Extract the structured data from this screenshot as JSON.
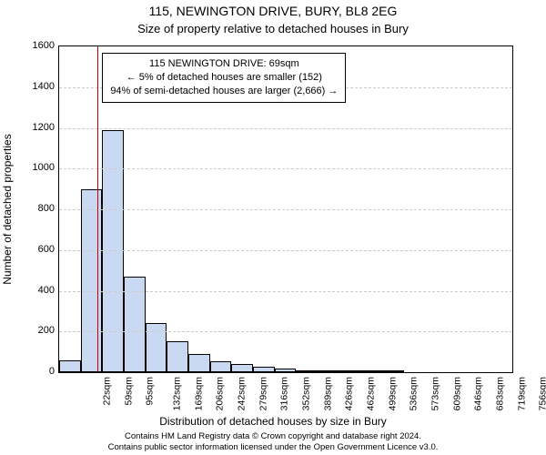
{
  "titles": {
    "main": "115, NEWINGTON DRIVE, BURY, BL8 2EG",
    "sub": "Size of property relative to detached houses in Bury"
  },
  "axes": {
    "ylabel": "Number of detached properties",
    "xlabel": "Distribution of detached houses by size in Bury",
    "ylim": [
      0,
      1600
    ],
    "yticks": [
      0,
      200,
      400,
      600,
      800,
      1000,
      1200,
      1400,
      1600
    ],
    "xlim_sqm": [
      3.4,
      775.4
    ],
    "bar_width_sqm": 36.7,
    "xtick_labels": [
      "22sqm",
      "59sqm",
      "95sqm",
      "132sqm",
      "169sqm",
      "206sqm",
      "242sqm",
      "279sqm",
      "316sqm",
      "352sqm",
      "389sqm",
      "426sqm",
      "462sqm",
      "499sqm",
      "536sqm",
      "573sqm",
      "609sqm",
      "646sqm",
      "683sqm",
      "719sqm",
      "756sqm"
    ]
  },
  "style": {
    "bar_fill": "#c9d9f2",
    "bar_border": "#000000",
    "grid_color": "#cccccc",
    "marker_color": "#cc0000",
    "background": "#ffffff",
    "font_family": "Arial",
    "title_fontsize": 14,
    "label_fontsize": 12,
    "tick_fontsize": 11,
    "footer_fontsize": 9.5
  },
  "series": {
    "values": [
      60,
      900,
      1190,
      470,
      240,
      150,
      90,
      55,
      40,
      25,
      20,
      10,
      8,
      6,
      4,
      3,
      2,
      1,
      0,
      0,
      0
    ]
  },
  "marker": {
    "sqm": 69,
    "box": {
      "line1": "115 NEWINGTON DRIVE: 69sqm",
      "line2": "← 5% of detached houses are smaller (152)",
      "line3": "94% of semi-detached houses are larger (2,666) →"
    }
  },
  "footer": {
    "line1": "Contains HM Land Registry data © Crown copyright and database right 2024.",
    "line2": "Contains public sector information licensed under the Open Government Licence v3.0."
  }
}
